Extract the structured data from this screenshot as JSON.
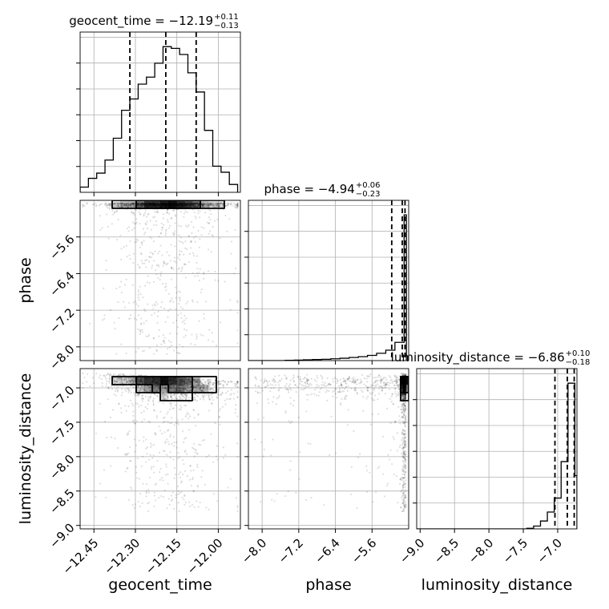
{
  "chart_data": {
    "type": "corner",
    "parameters": [
      "geocent_time",
      "phase",
      "luminosity_distance"
    ],
    "titles": [
      {
        "param": "geocent_time",
        "text": "geocent_time = −12.19",
        "plus": "+0.11",
        "minus": "−0.13"
      },
      {
        "param": "phase",
        "text": "phase = −4.94",
        "plus": "+0.06",
        "minus": "−0.23"
      },
      {
        "param": "luminosity_distance",
        "text": "luminosity_distance = −6.86",
        "plus": "+0.10",
        "minus": "−0.18"
      }
    ],
    "ranges": {
      "geocent_time": [
        -12.5,
        -11.92
      ],
      "phase": [
        -8.3,
        -4.8
      ],
      "luminosity_distance": [
        -9.05,
        -6.72
      ]
    },
    "ticks": {
      "geocent_time": {
        "values": [
          -12.45,
          -12.3,
          -12.15,
          -12.0
        ],
        "labels": [
          "−12.45",
          "−12.30",
          "−12.15",
          "−12.00"
        ]
      },
      "phase": {
        "values": [
          -8.0,
          -7.2,
          -6.4,
          -5.6
        ],
        "labels": [
          "−8.0",
          "−7.2",
          "−6.4",
          "−5.6"
        ]
      },
      "luminosity_distance": {
        "values": [
          -9.0,
          -8.5,
          -8.0,
          -7.5,
          -7.0
        ],
        "labels": [
          "−9.0",
          "−8.5",
          "−8.0",
          "−7.5",
          "−7.0"
        ]
      }
    },
    "quantiles": {
      "geocent_time": [
        -12.32,
        -12.19,
        -12.08
      ],
      "phase": [
        -5.17,
        -4.94,
        -4.88
      ],
      "luminosity_distance": [
        -7.04,
        -6.86,
        -6.76
      ]
    },
    "histograms": {
      "geocent_time": {
        "edges": [
          -12.5,
          -12.47,
          -12.44,
          -12.41,
          -12.38,
          -12.35,
          -12.32,
          -12.29,
          -12.26,
          -12.23,
          -12.2,
          -12.17,
          -12.14,
          -12.11,
          -12.08,
          -12.05,
          -12.02,
          -11.99,
          -11.96,
          -11.93
        ],
        "counts": [
          6,
          16,
          22,
          37,
          62,
          94,
          107,
          124,
          132,
          148,
          167,
          165,
          158,
          137,
          115,
          71,
          30,
          23,
          9
        ]
      },
      "phase": {
        "edges": [
          -8.3,
          -8.1,
          -7.9,
          -7.7,
          -7.5,
          -7.3,
          -7.1,
          -6.9,
          -6.7,
          -6.5,
          -6.3,
          -6.1,
          -5.9,
          -5.7,
          -5.5,
          -5.3,
          -5.1,
          -4.9,
          -4.85
        ],
        "counts": [
          0,
          0,
          0,
          0,
          1,
          2,
          3,
          4,
          5,
          7,
          9,
          12,
          15,
          20,
          28,
          40,
          70,
          560
        ]
      },
      "luminosity_distance": {
        "edges": [
          -9.05,
          -8.95,
          -8.85,
          -8.75,
          -8.65,
          -8.55,
          -8.45,
          -8.35,
          -8.25,
          -8.15,
          -8.05,
          -7.95,
          -7.85,
          -7.75,
          -7.65,
          -7.55,
          -7.45,
          -7.35,
          -7.25,
          -7.15,
          -7.05,
          -6.95,
          -6.85,
          -6.75,
          -6.72
        ],
        "counts": [
          0,
          0,
          0,
          0,
          0,
          0,
          0,
          0,
          0,
          0,
          0,
          0,
          0,
          0,
          0,
          0,
          2,
          10,
          28,
          60,
          110,
          240,
          520,
          190
        ]
      }
    },
    "samples": {
      "count": 1800,
      "seed": 20240601
    },
    "grid": true,
    "xlabel_color": "#000000",
    "contour_color": "#000000"
  }
}
